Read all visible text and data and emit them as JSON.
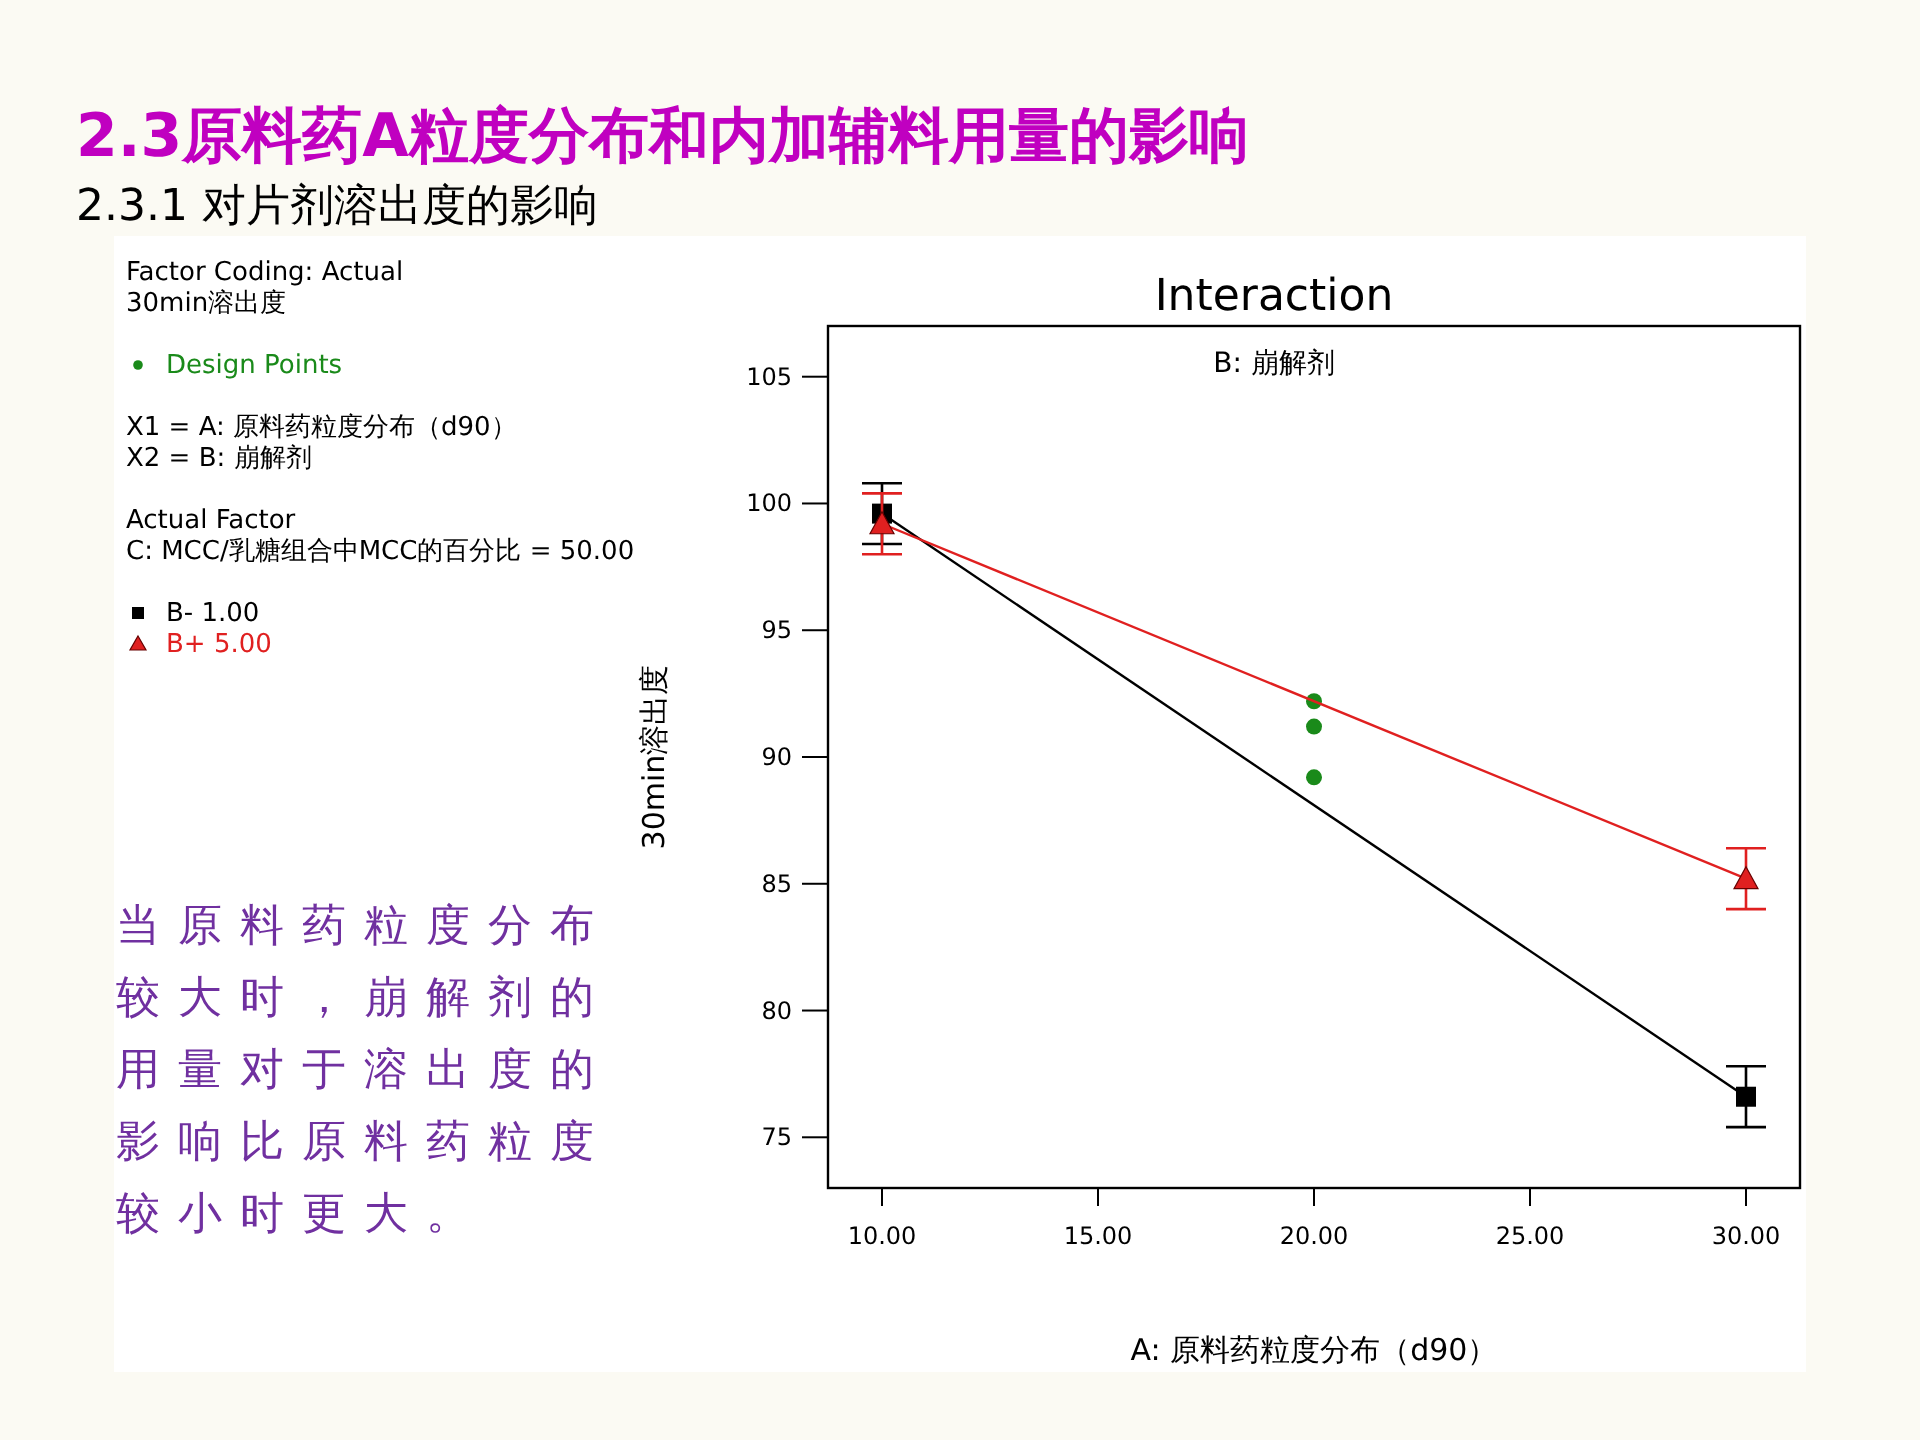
{
  "chart_data": {
    "type": "line",
    "title": "2.3原料药A粒度分布和内加辅料用量的影响",
    "subtitle": "2.3.1 对片剂溶出度的影响",
    "xlabel": "A: 原料药粒度分布（d90）",
    "ylabel": "30min溶出度",
    "annotations": [
      "Interaction",
      "Factor Coding: Actual",
      "30min溶出度",
      "X1 = A: 原料药粒度分布（d90）",
      "X2 = B: 崩解剂",
      "Actual Factor",
      "C: MCC/乳糖组合中MCC的百分比 = 50.00",
      "B: 崩解剂",
      "当原料药粒度分布较大时，崩解剂的用量对于溶出度的影响比原料药粒度较小时更大。"
    ],
    "xlim": [
      8.75,
      31.25
    ],
    "ylim": [
      73,
      107
    ],
    "xticks": [
      {
        "value": 10,
        "label": "10.00"
      },
      {
        "value": 15,
        "label": "15.00"
      },
      {
        "value": 20,
        "label": "20.00"
      },
      {
        "value": 25,
        "label": "25.00"
      },
      {
        "value": 30,
        "label": "30.00"
      }
    ],
    "yticks": [
      75,
      80,
      85,
      90,
      95,
      100,
      105
    ],
    "grid": false,
    "legend": "left",
    "series": [
      {
        "name": "Design Points",
        "type": "scatter",
        "color": "#1a8a1a",
        "marker": "circle",
        "x": [
          20,
          20,
          20
        ],
        "values": [
          92.2,
          91.2,
          89.2
        ]
      },
      {
        "name": "B- 1.00",
        "type": "line",
        "color": "#000000",
        "marker": "square",
        "x": [
          10,
          30
        ],
        "values": [
          99.6,
          76.6
        ],
        "errors": [
          1.2,
          1.2
        ]
      },
      {
        "name": "B+ 5.00",
        "type": "line",
        "color": "#e02020",
        "marker": "triangle",
        "x": [
          10,
          30
        ],
        "values": [
          99.2,
          85.2
        ],
        "errors": [
          1.2,
          1.2
        ]
      }
    ]
  }
}
